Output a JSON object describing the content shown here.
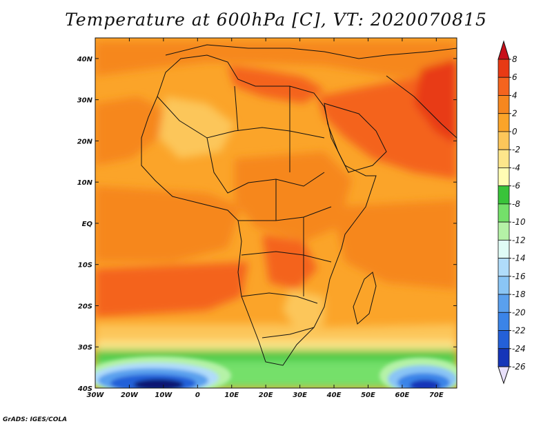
{
  "title": "Temperature at 600hPa [C], VT: 2020070815",
  "credit": "GrADS: IGES/COLA",
  "map": {
    "lon_range": [
      -30,
      76
    ],
    "lat_range": [
      -40,
      45
    ],
    "lon_ticks": [
      {
        "value": -30,
        "label": "30W"
      },
      {
        "value": -20,
        "label": "20W"
      },
      {
        "value": -10,
        "label": "10W"
      },
      {
        "value": 0,
        "label": "0"
      },
      {
        "value": 10,
        "label": "10E"
      },
      {
        "value": 20,
        "label": "20E"
      },
      {
        "value": 30,
        "label": "30E"
      },
      {
        "value": 40,
        "label": "40E"
      },
      {
        "value": 50,
        "label": "50E"
      },
      {
        "value": 60,
        "label": "60E"
      },
      {
        "value": 70,
        "label": "70E"
      }
    ],
    "lat_ticks": [
      {
        "value": 40,
        "label": "40N"
      },
      {
        "value": 30,
        "label": "30N"
      },
      {
        "value": 20,
        "label": "20N"
      },
      {
        "value": 10,
        "label": "10N"
      },
      {
        "value": 0,
        "label": "EQ"
      },
      {
        "value": -10,
        "label": "10S"
      },
      {
        "value": -20,
        "label": "20S"
      },
      {
        "value": -30,
        "label": "30S"
      },
      {
        "value": -40,
        "label": "40S"
      }
    ]
  },
  "colorbar": {
    "levels": [
      {
        "value": 8,
        "label": "8",
        "color": "#e83a14"
      },
      {
        "value": 6,
        "label": "6",
        "color": "#f4641e"
      },
      {
        "value": 4,
        "label": "4",
        "color": "#f6871f"
      },
      {
        "value": 2,
        "label": "2",
        "color": "#fba429"
      },
      {
        "value": 0,
        "label": "0",
        "color": "#fcc65a"
      },
      {
        "value": -2,
        "label": "-2",
        "color": "#fde68b"
      },
      {
        "value": -4,
        "label": "-4",
        "color": "#fffdb4"
      },
      {
        "value": -6,
        "label": "-6",
        "color": "#39c43a"
      },
      {
        "value": -8,
        "label": "-8",
        "color": "#74e06a"
      },
      {
        "value": -10,
        "label": "-10",
        "color": "#b5f2a7"
      },
      {
        "value": -12,
        "label": "-12",
        "color": "#e0fcf6"
      },
      {
        "value": -14,
        "label": "-14",
        "color": "#b0dcfa"
      },
      {
        "value": -16,
        "label": "-16",
        "color": "#8ac5f5"
      },
      {
        "value": -18,
        "label": "-18",
        "color": "#5aa0ee"
      },
      {
        "value": -20,
        "label": "-20",
        "color": "#3b84e8"
      },
      {
        "value": -22,
        "label": "-22",
        "color": "#2460d8"
      },
      {
        "value": -24,
        "label": "-24",
        "color": "#1535b8"
      },
      {
        "value": -26,
        "label": "-26",
        "color": "#0a1572"
      }
    ],
    "over_color": "#c8101a",
    "under_color": "#e8e0fa"
  }
}
